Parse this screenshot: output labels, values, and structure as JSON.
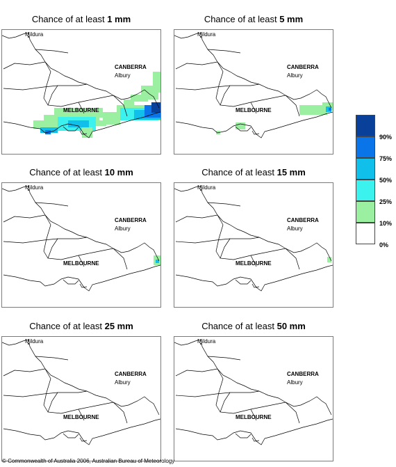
{
  "panels": [
    {
      "title_prefix": "Chance of at least ",
      "amount": "1 mm"
    },
    {
      "title_prefix": "Chance of at least ",
      "amount": "5 mm"
    },
    {
      "title_prefix": "Chance of at least ",
      "amount": "10 mm"
    },
    {
      "title_prefix": "Chance of at least ",
      "amount": "15 mm"
    },
    {
      "title_prefix": "Chance of at least ",
      "amount": "25 mm"
    },
    {
      "title_prefix": "Chance of at least ",
      "amount": "50 mm"
    }
  ],
  "places": {
    "mildura": "Mildura",
    "canberra": "CANBERRA",
    "albury": "Albury",
    "melbourne": "MELBOURNE"
  },
  "legend": {
    "labels": [
      "90%",
      "75%",
      "50%",
      "25%",
      "10%",
      "0%"
    ],
    "colors": [
      "#08409a",
      "#0a75e8",
      "#10c0ea",
      "#3cf2ee",
      "#9af0a0",
      "#ffffff"
    ]
  },
  "colors": {
    "boundary": "#000000",
    "frame": "#7a7a7a"
  },
  "copyright": "© Commonwealth of Australia 2006, Australian Bureau of Meteorology"
}
